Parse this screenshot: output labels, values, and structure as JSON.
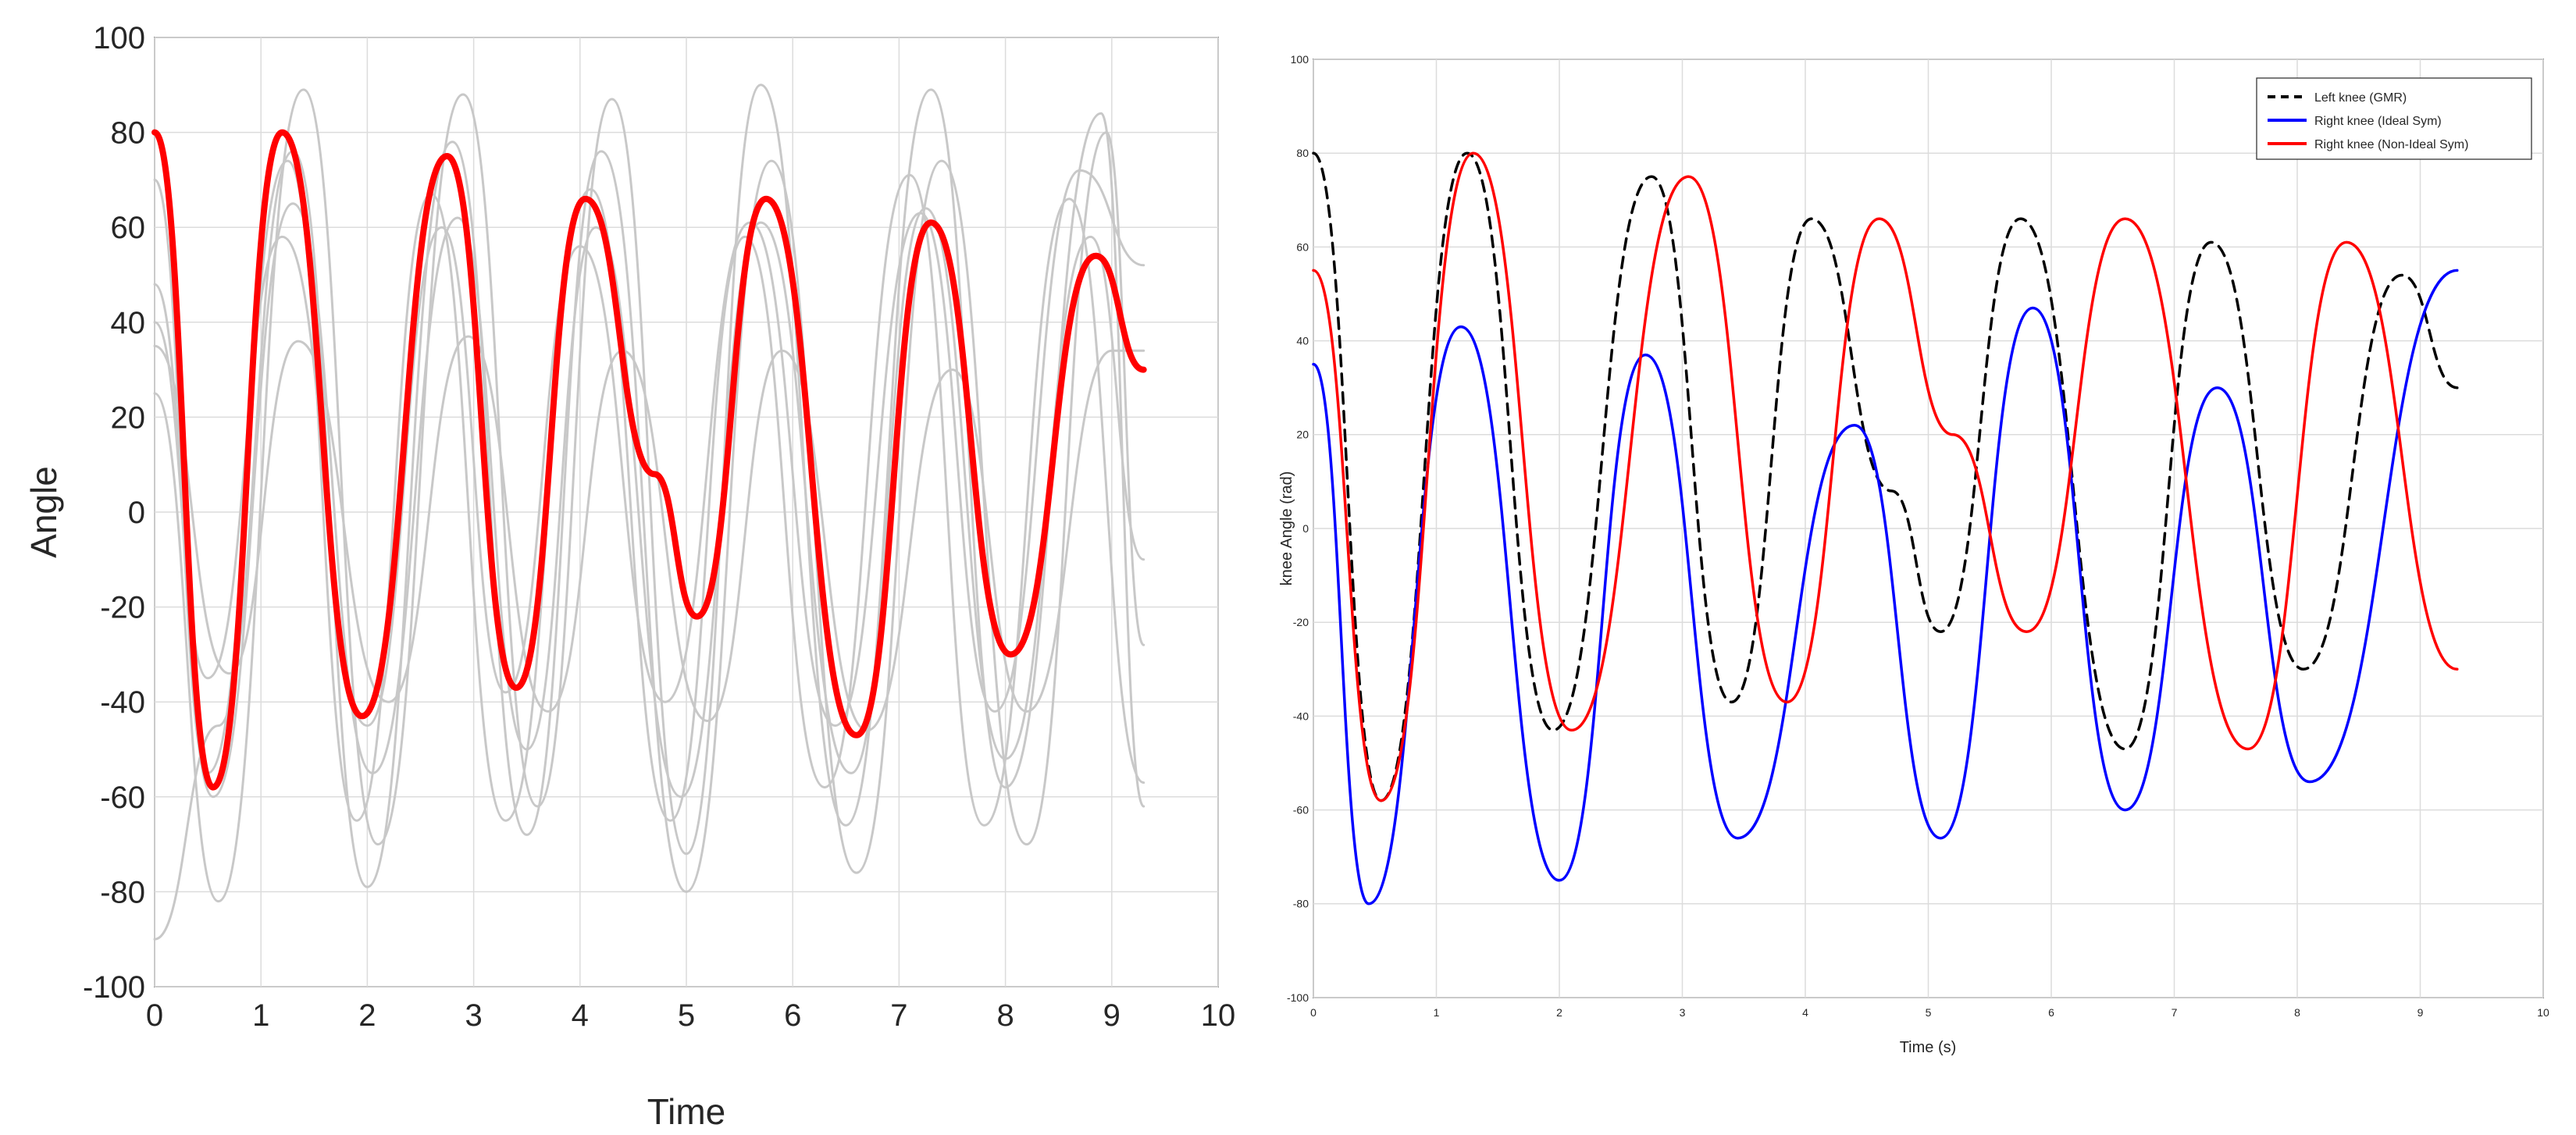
{
  "chart_data": [
    {
      "type": "line",
      "title": "",
      "xlabel": "Time",
      "ylabel": "Angle",
      "xlim": [
        0,
        10
      ],
      "ylim": [
        -100,
        100
      ],
      "xticks": [
        0,
        1,
        2,
        3,
        4,
        5,
        6,
        7,
        8,
        9,
        10
      ],
      "yticks": [
        -100,
        -80,
        -60,
        -40,
        -20,
        0,
        20,
        40,
        60,
        80,
        100
      ],
      "grid": true,
      "legend": "none",
      "colors": {
        "mean": "#ff0000",
        "trial": "#c8c8c8"
      },
      "series": [
        {
          "role": "mean",
          "x": [
            0,
            0.55,
            1.2,
            1.95,
            2.75,
            3.4,
            4.05,
            4.7,
            5.1,
            5.75,
            6.6,
            7.3,
            8.05,
            8.85,
            9.3
          ],
          "y": [
            80,
            -58,
            80,
            -43,
            75,
            -37,
            66,
            8,
            -22,
            66,
            -47,
            61,
            -30,
            54,
            30
          ]
        },
        {
          "role": "trial",
          "x": [
            0,
            0.6,
            1.4,
            2.1,
            2.9,
            3.6,
            4.3,
            5.0,
            5.7,
            6.5,
            7.3,
            8.0,
            8.9,
            9.3
          ],
          "y": [
            25,
            -82,
            89,
            -70,
            88,
            -62,
            87,
            -72,
            90,
            -66,
            89,
            -58,
            84,
            -62
          ]
        },
        {
          "role": "trial",
          "x": [
            0,
            0.6,
            1.3,
            2.0,
            2.8,
            3.5,
            4.2,
            5.0,
            5.8,
            6.6,
            7.4,
            8.2,
            8.95,
            9.3
          ],
          "y": [
            -90,
            -45,
            76,
            -79,
            78,
            -68,
            76,
            -80,
            74,
            -76,
            74,
            -70,
            80,
            -28
          ]
        },
        {
          "role": "trial",
          "x": [
            0,
            0.55,
            1.3,
            2.05,
            2.85,
            3.5,
            4.15,
            4.95,
            5.7,
            6.55,
            7.25,
            8.0,
            8.8,
            9.3
          ],
          "y": [
            48,
            -60,
            65,
            -55,
            62,
            -50,
            60,
            -60,
            61,
            -55,
            64,
            -52,
            58,
            -10
          ]
        },
        {
          "role": "trial",
          "x": [
            0,
            0.5,
            1.2,
            2.0,
            2.7,
            3.3,
            4.0,
            4.8,
            5.6,
            6.4,
            7.2,
            7.9,
            8.7,
            9.3
          ],
          "y": [
            40,
            -35,
            58,
            -45,
            60,
            -38,
            56,
            -40,
            61,
            -45,
            63,
            -42,
            72,
            52
          ]
        },
        {
          "role": "trial",
          "x": [
            0,
            0.7,
            1.35,
            2.2,
            2.95,
            3.7,
            4.4,
            5.2,
            5.9,
            6.7,
            7.5,
            8.2,
            9.0,
            9.3
          ],
          "y": [
            35,
            -34,
            36,
            -40,
            37,
            -42,
            34,
            -44,
            34,
            -46,
            30,
            -42,
            34,
            34
          ]
        },
        {
          "role": "trial",
          "x": [
            0,
            0.5,
            1.25,
            1.9,
            2.6,
            3.3,
            4.1,
            4.85,
            5.55,
            6.3,
            7.1,
            7.8,
            8.6,
            9.3
          ],
          "y": [
            70,
            -55,
            74,
            -65,
            67,
            -65,
            68,
            -65,
            58,
            -58,
            71,
            -66,
            66,
            -57
          ]
        }
      ]
    },
    {
      "type": "line",
      "title": "",
      "xlabel": "Time (s)",
      "ylabel": "knee Angle (rad)",
      "xlim": [
        0,
        10
      ],
      "ylim": [
        -100,
        100
      ],
      "xticks": [
        0,
        1,
        2,
        3,
        4,
        5,
        6,
        7,
        8,
        9,
        10
      ],
      "yticks": [
        -100,
        -80,
        -60,
        -40,
        -20,
        0,
        20,
        40,
        60,
        80,
        100
      ],
      "grid": true,
      "legend": "top-right",
      "series": [
        {
          "name": "Left knee (GMR)",
          "color": "#000000",
          "dash": true,
          "x": [
            0,
            0.55,
            1.25,
            1.95,
            2.75,
            3.4,
            4.05,
            4.7,
            5.1,
            5.75,
            6.6,
            7.3,
            8.05,
            8.85,
            9.3
          ],
          "y": [
            80,
            -58,
            80,
            -43,
            75,
            -37,
            66,
            8,
            -22,
            66,
            -47,
            61,
            -30,
            54,
            30
          ]
        },
        {
          "name": "Right knee (Ideal Sym)",
          "color": "#0000ff",
          "dash": false,
          "x": [
            0,
            0.45,
            1.2,
            2.0,
            2.7,
            3.45,
            4.4,
            5.1,
            5.85,
            6.6,
            7.35,
            8.1,
            9.3
          ],
          "y": [
            35,
            -80,
            43,
            -75,
            37,
            -66,
            22,
            -66,
            47,
            -60,
            30,
            -54,
            55
          ]
        },
        {
          "name": "Right knee (Non-Ideal Sym)",
          "color": "#ff0000",
          "dash": false,
          "x": [
            0,
            0.55,
            1.3,
            2.1,
            3.05,
            3.85,
            4.6,
            5.2,
            5.8,
            6.6,
            7.6,
            8.4,
            9.3
          ],
          "y": [
            55,
            -58,
            80,
            -43,
            75,
            -37,
            66,
            20,
            -22,
            66,
            -47,
            61,
            -30
          ]
        }
      ]
    }
  ]
}
